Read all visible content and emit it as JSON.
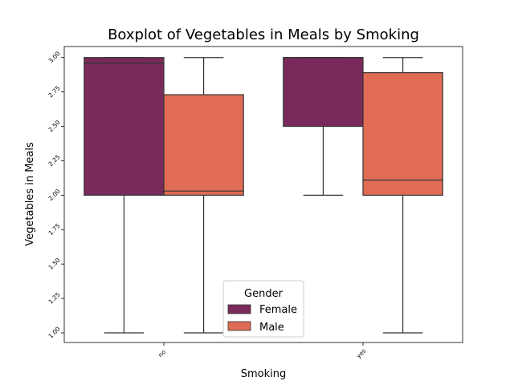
{
  "chart_data": {
    "type": "boxplot",
    "title": "Boxplot of Vegetables in Meals by Smoking",
    "xlabel": "Smoking",
    "ylabel": "Vegetables in Meals",
    "categories": [
      "no",
      "yes"
    ],
    "ylim": [
      0.93,
      3.08
    ],
    "yticks": [
      1.0,
      1.25,
      1.5,
      1.75,
      2.0,
      2.25,
      2.5,
      2.75,
      3.0
    ],
    "ytick_labels": [
      "1.00",
      "1.25",
      "1.50",
      "1.75",
      "2.00",
      "2.25",
      "2.50",
      "2.75",
      "3.00"
    ],
    "legend": {
      "title": "Gender",
      "placement": "lower center"
    },
    "series": [
      {
        "name": "Female",
        "color": "#7a2a5a",
        "boxes": [
          {
            "whisker_low": 1.0,
            "q1": 2.0,
            "median": 2.96,
            "q3": 3.0,
            "whisker_high": 3.0
          },
          {
            "whisker_low": 2.0,
            "q1": 2.5,
            "median": 3.0,
            "q3": 3.0,
            "whisker_high": 3.0
          }
        ]
      },
      {
        "name": "Male",
        "color": "#e06c55",
        "boxes": [
          {
            "whisker_low": 1.0,
            "q1": 2.0,
            "median": 2.03,
            "q3": 2.73,
            "whisker_high": 3.0
          },
          {
            "whisker_low": 1.0,
            "q1": 2.0,
            "median": 2.11,
            "q3": 2.89,
            "whisker_high": 3.0
          }
        ]
      }
    ]
  }
}
